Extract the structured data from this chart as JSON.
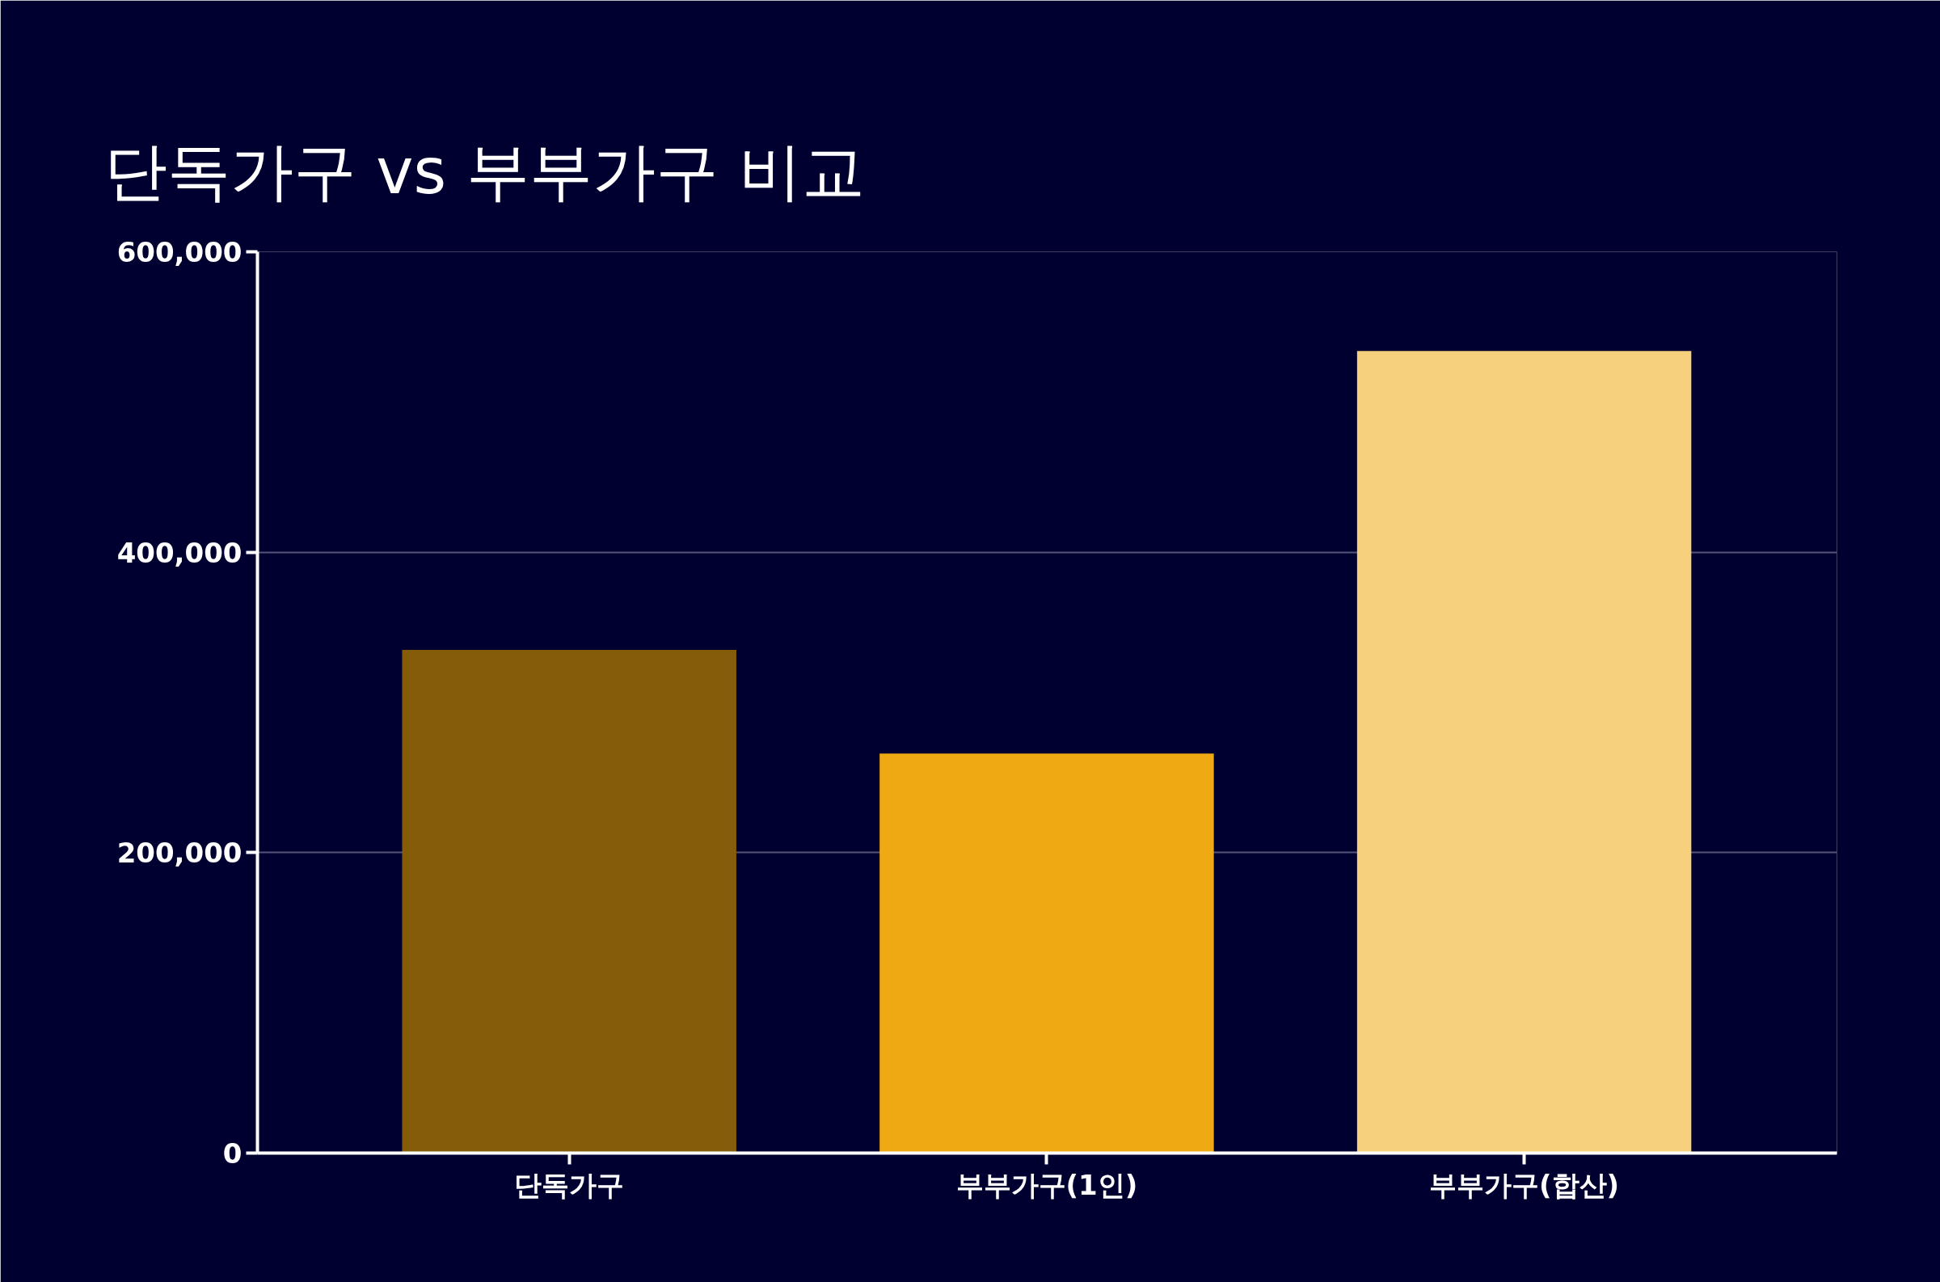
{
  "chart_data": {
    "type": "bar",
    "title": "단독가구 vs 부부가구 비교",
    "categories": [
      "단독가구",
      "부부가구(1인)",
      "부부가구(합산)"
    ],
    "values": [
      335000,
      266000,
      534000
    ],
    "colors": [
      "#845c0a",
      "#eea913",
      "#f6d07c"
    ],
    "ylim": [
      0,
      600000
    ],
    "yticks": [
      {
        "value": 0,
        "label": "0"
      },
      {
        "value": 200000,
        "label": "200,000"
      },
      {
        "value": 400000,
        "label": "400,000"
      },
      {
        "value": 600000,
        "label": "600,000"
      }
    ],
    "grid": "y"
  }
}
